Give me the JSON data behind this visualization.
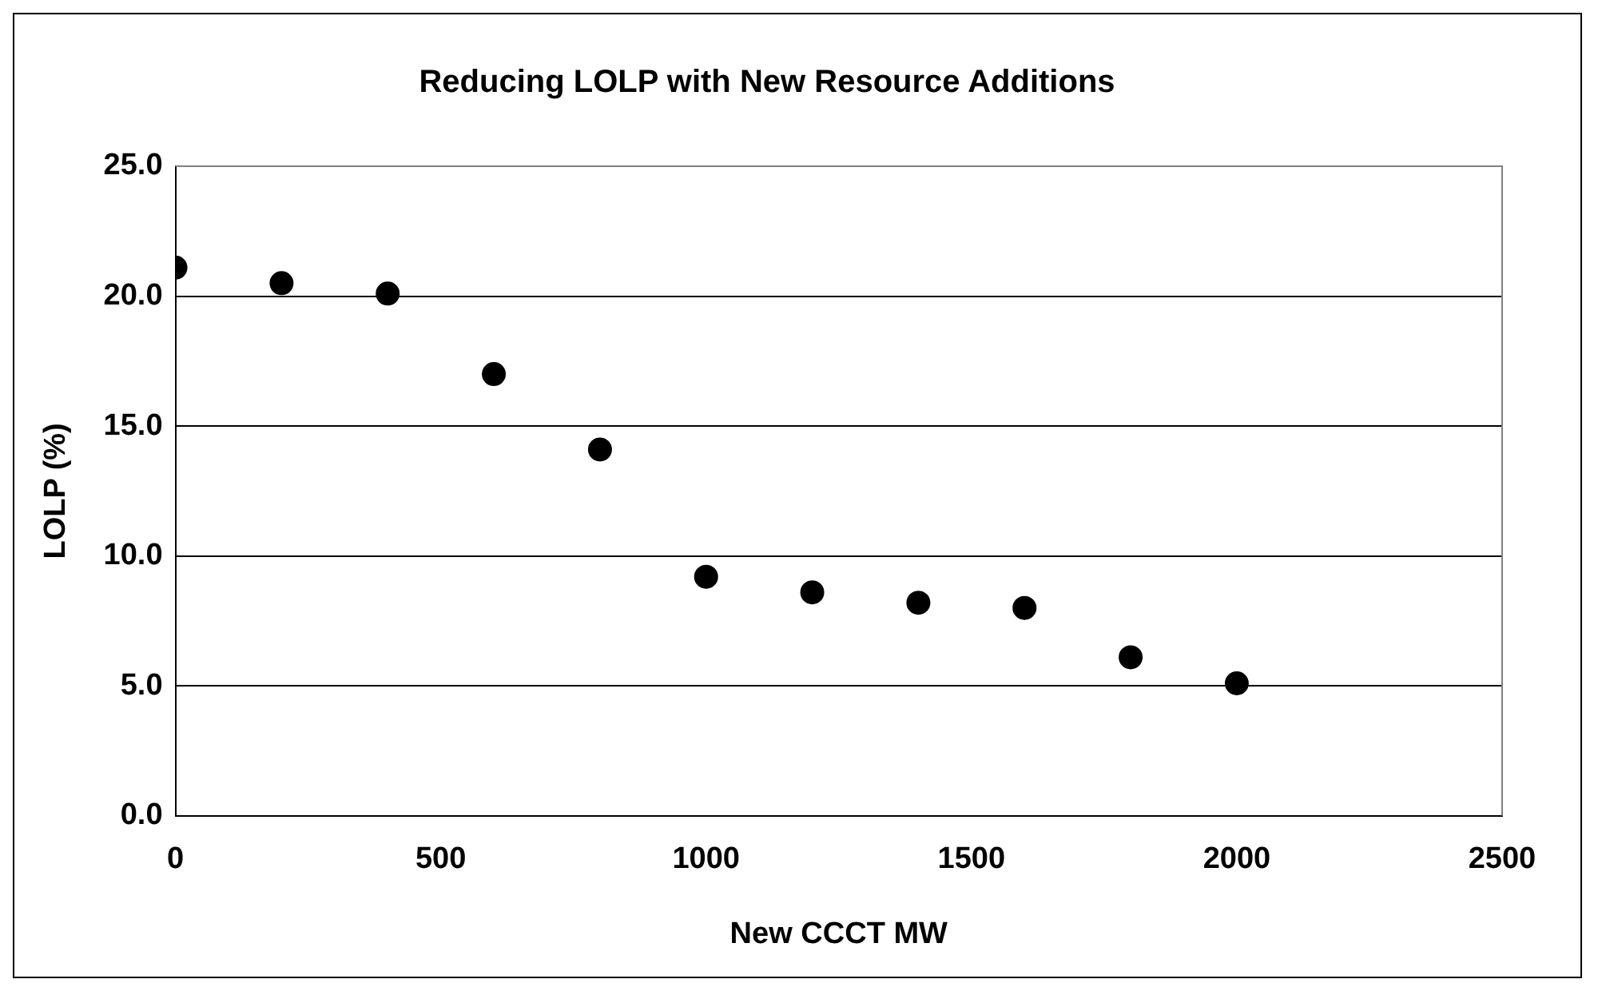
{
  "chart_data": {
    "type": "scatter",
    "title": "Reducing LOLP with New Resource Additions",
    "xlabel": "New CCCT MW",
    "ylabel": "LOLP (%)",
    "x": [
      0,
      200,
      400,
      600,
      800,
      1000,
      1200,
      1400,
      1600,
      1800,
      2000
    ],
    "series": [
      {
        "color": "#000000",
        "values": [
          21.1,
          20.5,
          20.1,
          17.0,
          14.1,
          9.2,
          8.6,
          8.2,
          8.0,
          6.1,
          5.1
        ]
      }
    ],
    "xlim": [
      0,
      2500
    ],
    "xticks": [
      0,
      500,
      1000,
      1500,
      2000,
      2500
    ],
    "ylim": [
      0,
      25
    ],
    "yticks": [
      {
        "value": 0,
        "label": "0.0"
      },
      {
        "value": 5,
        "label": "5.0"
      },
      {
        "value": 10,
        "label": "10.0"
      },
      {
        "value": 15,
        "label": "15.0"
      },
      {
        "value": 20,
        "label": "20.0"
      },
      {
        "value": 25,
        "label": "25.0"
      }
    ],
    "grid": "y",
    "legend": false,
    "marker": "circle"
  }
}
